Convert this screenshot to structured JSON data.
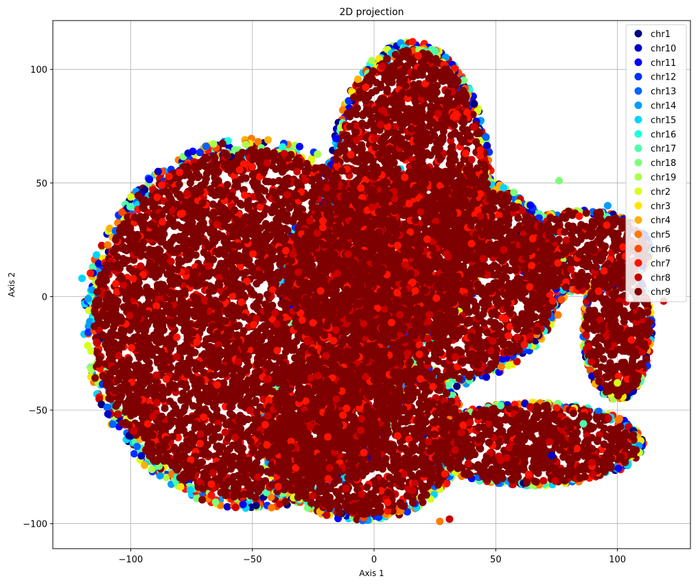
{
  "chart_data": {
    "type": "scatter",
    "title": "2D projection",
    "xlabel": "Axis 1",
    "ylabel": "Axis 2",
    "xlim": [
      -132,
      130
    ],
    "ylim": [
      -111,
      121.5
    ],
    "xticks": [
      -100,
      -50,
      0,
      50,
      100
    ],
    "yticks": [
      -100,
      -50,
      0,
      50,
      100
    ],
    "xtick_labels": [
      "−100",
      "−50",
      "0",
      "50",
      "100"
    ],
    "ytick_labels": [
      "−100",
      "−50",
      "0",
      "50",
      "100"
    ],
    "grid": true,
    "legend_position": "top-right",
    "series": [
      {
        "name": "chr1",
        "color": "#00007f"
      },
      {
        "name": "chr10",
        "color": "#0000c8"
      },
      {
        "name": "chr11",
        "color": "#0000ff"
      },
      {
        "name": "chr12",
        "color": "#0030ff"
      },
      {
        "name": "chr13",
        "color": "#0064ff"
      },
      {
        "name": "chr14",
        "color": "#009cff"
      },
      {
        "name": "chr15",
        "color": "#00d4ff"
      },
      {
        "name": "chr16",
        "color": "#1fffd7"
      },
      {
        "name": "chr17",
        "color": "#4dffaa"
      },
      {
        "name": "chr18",
        "color": "#7dff7a"
      },
      {
        "name": "chr19",
        "color": "#aaff4d"
      },
      {
        "name": "chr2",
        "color": "#d7ff1f"
      },
      {
        "name": "chr3",
        "color": "#ffe500"
      },
      {
        "name": "chr4",
        "color": "#ffb000"
      },
      {
        "name": "chr5",
        "color": "#ff7a00"
      },
      {
        "name": "chr6",
        "color": "#ff4800"
      },
      {
        "name": "chr7",
        "color": "#ff1300"
      },
      {
        "name": "chr8",
        "color": "#c80000"
      },
      {
        "name": "chr9",
        "color": "#7f0000"
      }
    ],
    "regions": [
      {
        "name": "left-lobe",
        "cx": -50,
        "cy": -12,
        "rx": 68,
        "ry": 80
      },
      {
        "name": "upper-lobe",
        "cx": 15,
        "cy": 45,
        "rx": 33,
        "ry": 66
      },
      {
        "name": "center-lobe",
        "cx": 20,
        "cy": 8,
        "rx": 58,
        "ry": 48
      },
      {
        "name": "lower-lobe",
        "cx": -5,
        "cy": -60,
        "rx": 42,
        "ry": 38
      },
      {
        "name": "right-arm",
        "cx": 85,
        "cy": 20,
        "rx": 28,
        "ry": 18
      },
      {
        "name": "right-tail",
        "cx": 100,
        "cy": -15,
        "rx": 14,
        "ry": 30
      },
      {
        "name": "bottom-arm",
        "cx": 65,
        "cy": -65,
        "rx": 45,
        "ry": 18
      }
    ],
    "outliers": [
      {
        "x": 76,
        "y": 51,
        "series": "chr18"
      },
      {
        "x": 96,
        "y": 40,
        "series": "chr14"
      },
      {
        "x": 86,
        "y": -56,
        "series": "chr17"
      },
      {
        "x": 73,
        "y": -70,
        "series": "chr10"
      },
      {
        "x": 72,
        "y": -64,
        "series": "chr8"
      },
      {
        "x": 119,
        "y": -2,
        "series": "chr8"
      },
      {
        "x": -120,
        "y": 8,
        "series": "chr15"
      },
      {
        "x": -93,
        "y": -56,
        "series": "chr7"
      },
      {
        "x": 52,
        "y": -48,
        "series": "chr17"
      },
      {
        "x": 27,
        "y": -99,
        "series": "chr5"
      },
      {
        "x": 31,
        "y": -98,
        "series": "chr8"
      },
      {
        "x": 100,
        "y": -38,
        "series": "chr2"
      }
    ]
  }
}
